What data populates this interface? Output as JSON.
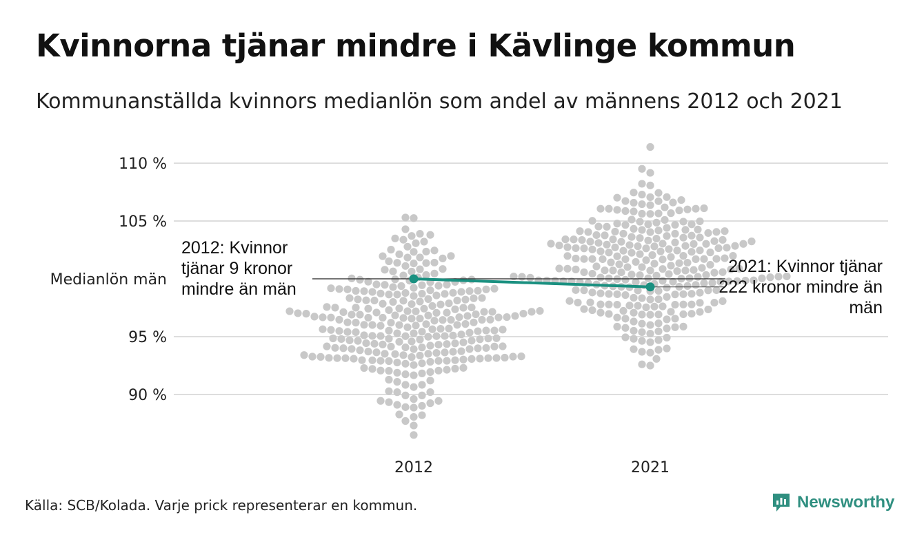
{
  "title": "Kvinnorna tjänar mindre i Kävlinge kommun",
  "subtitle": "Kommunanställda kvinnors medianlön som andel av männens 2012 och 2021",
  "source": "Källa: SCB/Kolada. Varje prick representerar en kommun.",
  "brand": "Newsworthy",
  "colors": {
    "dots": "#c8c8c8",
    "highlight": "#1a9080",
    "grid": "#dddddd",
    "brand": "#2f8f80"
  },
  "chart_data": {
    "type": "scatter",
    "subtype": "beeswarm",
    "categories": [
      "2012",
      "2021"
    ],
    "y_ticks": [
      {
        "value": 90,
        "label": "90 %"
      },
      {
        "value": 95,
        "label": "95 %"
      },
      {
        "value": 105,
        "label": "105 %"
      },
      {
        "value": 110,
        "label": "110 %"
      }
    ],
    "reference_line": {
      "value": 100,
      "label": "Medianlön män"
    },
    "ylim": [
      86,
      111.5
    ],
    "grid": true,
    "swarms": [
      {
        "category": "2012",
        "min": 86.5,
        "max": 105.3,
        "center": 96.0,
        "count": 290
      },
      {
        "category": "2021",
        "min": 92.5,
        "max": 111.4,
        "center": 101.0,
        "count": 290
      }
    ],
    "highlight": {
      "name": "Kävlinge",
      "points": [
        {
          "x": "2012",
          "y": 100.0
        },
        {
          "x": "2021",
          "y": 99.3
        }
      ]
    },
    "annotations": [
      {
        "category": "2012",
        "text": "2012: Kvinnor tjänar 9 kronor mindre än män"
      },
      {
        "category": "2021",
        "text": "2021: Kvinnor tjänar 222 kronor mindre än män"
      }
    ]
  }
}
